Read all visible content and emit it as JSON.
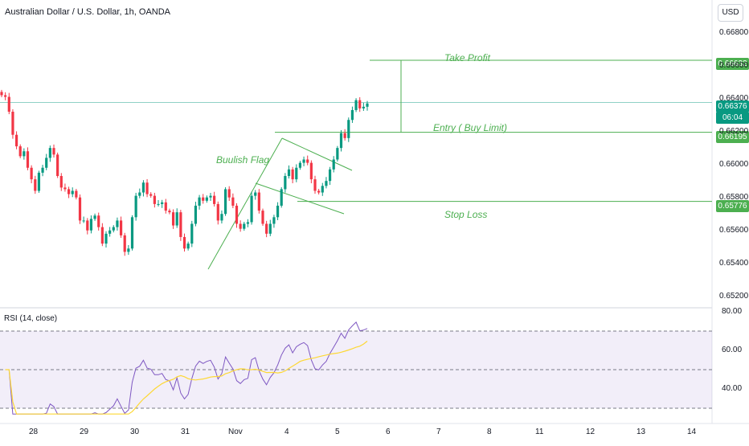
{
  "header": {
    "symbol": "Australian Dollar / U.S. Dollar, 1h, OANDA",
    "currency": "USD"
  },
  "annotations": {
    "take_profit": "Take Profit",
    "entry": "Entry ( Buy Limit)",
    "stop_loss": "Stop Loss",
    "pattern": "Buulish Flag"
  },
  "price_tags": {
    "take_profit": "0.66632",
    "last_price": "0.66376",
    "countdown": "06:04",
    "entry": "0.66195",
    "stop_loss": "0.65776"
  },
  "rsi": {
    "title": "RSI (14, close)"
  },
  "colors": {
    "up": "#089981",
    "down": "#f23645",
    "levels": "#4caf50",
    "rsi_line": "#7e57c2",
    "rsi_ma": "#fdd835"
  },
  "chart_data": [
    {
      "type": "candlestick",
      "title": "Australian Dollar / U.S. Dollar, 1h, OANDA",
      "x_ticks": [
        "28",
        "29",
        "30",
        "31",
        "Nov",
        "4",
        "5",
        "6",
        "7",
        "8",
        "11",
        "12",
        "13",
        "14"
      ],
      "y_ticks": [
        "0.66800",
        "0.66600",
        "0.66400",
        "0.66200",
        "0.66000",
        "0.65800",
        "0.65600",
        "0.65400",
        "0.65200"
      ],
      "ylim": [
        0.6516,
        0.669
      ],
      "levels": {
        "take_profit": 0.66632,
        "entry": 0.66195,
        "stop_loss": 0.65776,
        "last": 0.66376
      },
      "close_series": [
        0.6642,
        0.6641,
        0.6632,
        0.6618,
        0.6611,
        0.6605,
        0.6608,
        0.6598,
        0.6591,
        0.6584,
        0.6595,
        0.6598,
        0.6604,
        0.661,
        0.6606,
        0.6593,
        0.6586,
        0.6585,
        0.6582,
        0.6584,
        0.658,
        0.6566,
        0.6566,
        0.656,
        0.6567,
        0.6569,
        0.6562,
        0.6552,
        0.6558,
        0.656,
        0.6562,
        0.6566,
        0.6557,
        0.6547,
        0.6549,
        0.6568,
        0.6581,
        0.6583,
        0.6589,
        0.6582,
        0.6581,
        0.6576,
        0.6576,
        0.6577,
        0.6572,
        0.6571,
        0.6563,
        0.6571,
        0.6556,
        0.6549,
        0.6552,
        0.6564,
        0.6575,
        0.658,
        0.6578,
        0.658,
        0.6581,
        0.6576,
        0.6566,
        0.657,
        0.6585,
        0.658,
        0.6575,
        0.6564,
        0.6561,
        0.6564,
        0.6565,
        0.6581,
        0.6583,
        0.6572,
        0.6564,
        0.6558,
        0.6564,
        0.6568,
        0.6575,
        0.6585,
        0.6593,
        0.6597,
        0.6591,
        0.6598,
        0.6601,
        0.6603,
        0.6601,
        0.6591,
        0.6584,
        0.6583,
        0.6587,
        0.659,
        0.6597,
        0.6603,
        0.661,
        0.6619,
        0.6616,
        0.6627,
        0.6633,
        0.6639,
        0.6634,
        0.6635,
        0.6637
      ]
    },
    {
      "type": "line",
      "title": "RSI (14, close)",
      "y_ticks": [
        "80.00",
        "60.00",
        "40.00"
      ],
      "ylim": [
        25,
        80
      ],
      "bands": [
        70,
        50,
        30
      ],
      "series": []
    }
  ]
}
